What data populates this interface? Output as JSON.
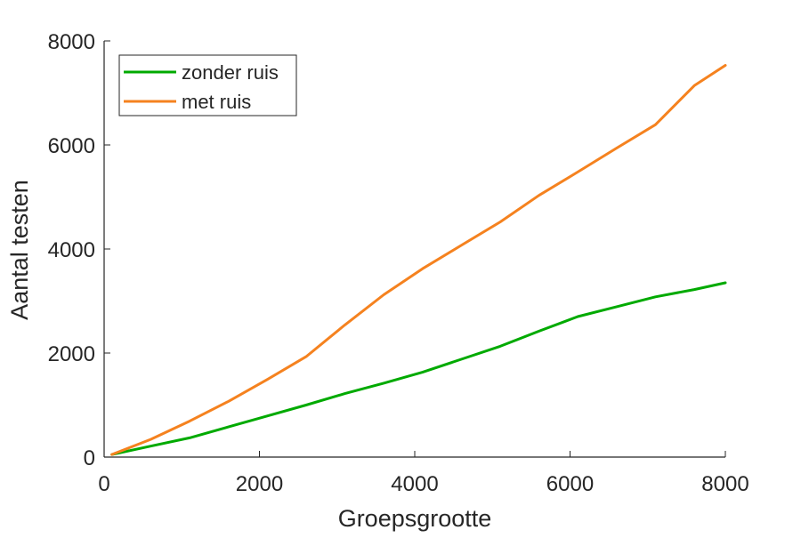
{
  "chart_data": {
    "type": "line",
    "title": "",
    "xlabel": "Groepsgrootte",
    "ylabel": "Aantal testen",
    "xlim": [
      0,
      8000
    ],
    "ylim": [
      0,
      8000
    ],
    "xticks": [
      0,
      2000,
      4000,
      6000,
      8000
    ],
    "yticks": [
      0,
      2000,
      4000,
      6000,
      8000
    ],
    "x_tick_labels": [
      "0",
      "2000",
      "4000",
      "6000",
      "8000"
    ],
    "y_tick_labels": [
      "0",
      "2000",
      "4000",
      "6000",
      "8000"
    ],
    "grid": false,
    "legend_position": "top-left",
    "x": [
      100,
      600,
      1100,
      1600,
      2100,
      2600,
      3100,
      3600,
      4100,
      4600,
      5100,
      5600,
      6100,
      6600,
      7100,
      7600,
      8000
    ],
    "series": [
      {
        "name": "zonder ruis",
        "color": "#00aa00",
        "values": [
          50,
          210,
          370,
          580,
          790,
          1000,
          1220,
          1420,
          1630,
          1880,
          2130,
          2420,
          2700,
          2890,
          3080,
          3220,
          3350
        ]
      },
      {
        "name": "met ruis",
        "color": "#f5821f",
        "values": [
          50,
          340,
          690,
          1070,
          1490,
          1930,
          2540,
          3120,
          3620,
          4070,
          4520,
          5030,
          5480,
          5940,
          6390,
          7140,
          7530
        ]
      }
    ]
  }
}
